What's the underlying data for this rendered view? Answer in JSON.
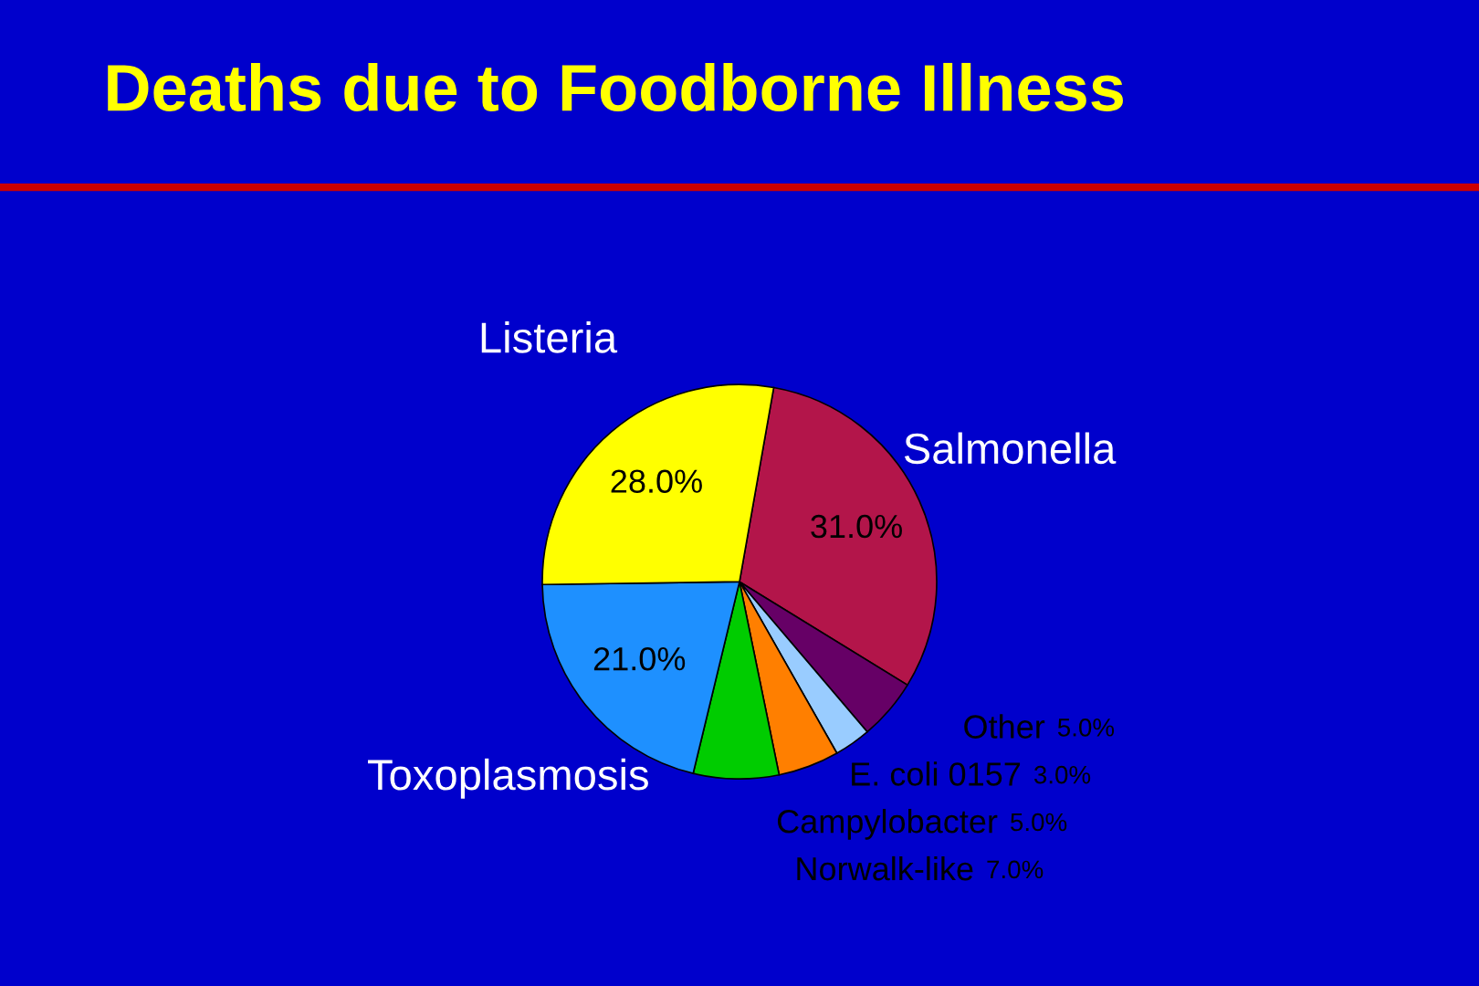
{
  "chart_data": {
    "type": "pie",
    "title": "Deaths due to Foodborne Illness",
    "categories": [
      "Salmonella",
      "Other",
      "E. coli 0157",
      "Campylobacter",
      "Norwalk-like",
      "Toxoplasmosis",
      "Listeria"
    ],
    "values": [
      31,
      5,
      3,
      5,
      7,
      21,
      28
    ],
    "value_labels": [
      "31.0%",
      "5.0%",
      "3.0%",
      "5.0%",
      "7.0%",
      "21.0%",
      "28.0%"
    ],
    "colors": [
      "#b3154a",
      "#660066",
      "#99ccff",
      "#ff7f00",
      "#00cc00",
      "#1e90ff",
      "#ffff00"
    ]
  }
}
